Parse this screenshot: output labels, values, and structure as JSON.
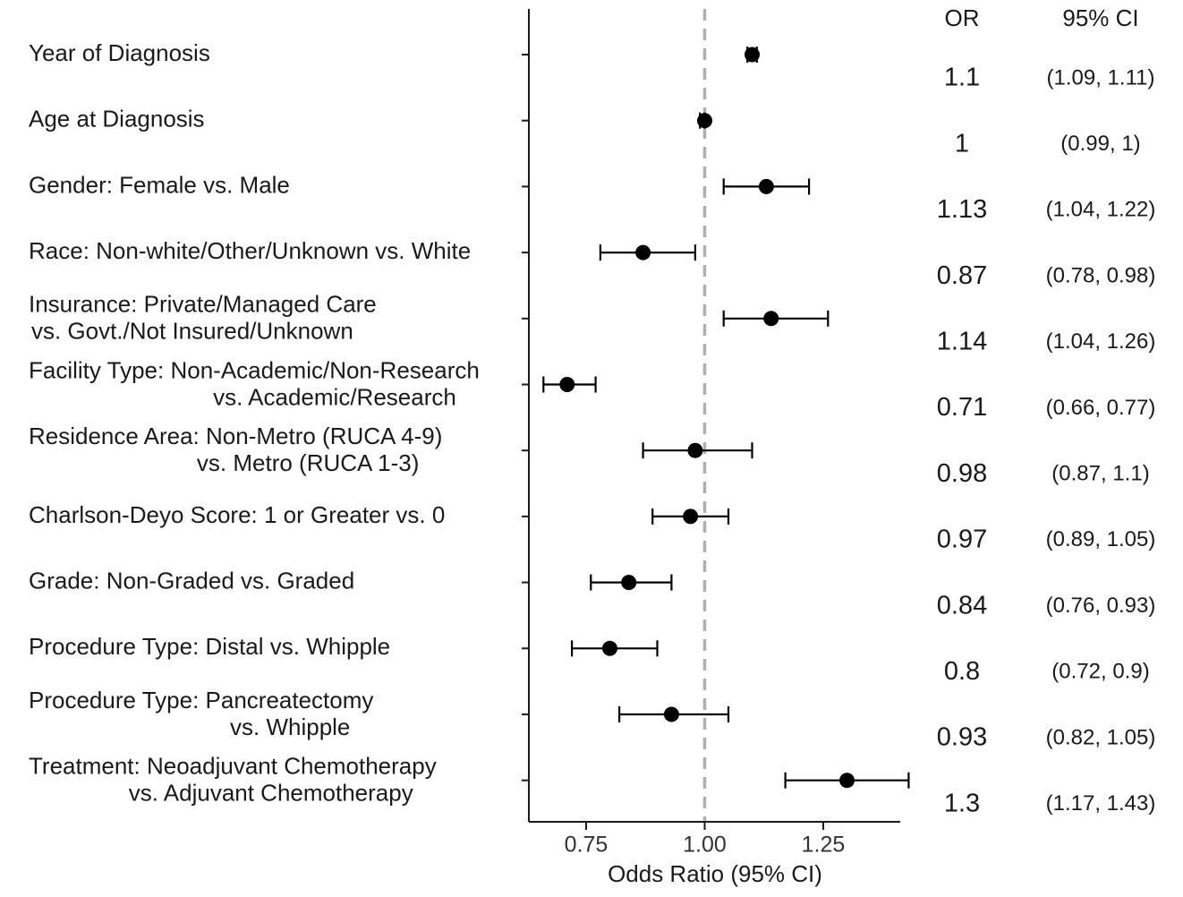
{
  "chart_data": {
    "type": "forest",
    "xlabel": "Odds Ratio (95% CI)",
    "xlim": [
      0.64,
      1.45
    ],
    "xticks": [
      0.75,
      1.0,
      1.25
    ],
    "xtick_labels": [
      "0.75",
      "1.00",
      "1.25"
    ],
    "reference_line": 1.0,
    "headers": {
      "or": "OR",
      "ci": "95% CI"
    },
    "rows": [
      {
        "label": [
          "Year of Diagnosis"
        ],
        "or": 1.1,
        "lo": 1.09,
        "hi": 1.11,
        "or_text": "1.1",
        "ci_text": "(1.09, 1.11)"
      },
      {
        "label": [
          "Age at Diagnosis"
        ],
        "or": 1.0,
        "lo": 0.99,
        "hi": 1.0,
        "or_text": "1",
        "ci_text": "(0.99, 1)"
      },
      {
        "label": [
          "Gender: Female vs. Male"
        ],
        "or": 1.13,
        "lo": 1.04,
        "hi": 1.22,
        "or_text": "1.13",
        "ci_text": "(1.04, 1.22)"
      },
      {
        "label": [
          "Race: Non-white/Other/Unknown vs. White"
        ],
        "or": 0.87,
        "lo": 0.78,
        "hi": 0.98,
        "or_text": "0.87",
        "ci_text": "(0.78, 0.98)"
      },
      {
        "label": [
          "Insurance: Private/Managed Care",
          "vs. Govt./Not Insured/Unknown"
        ],
        "or": 1.14,
        "lo": 1.04,
        "hi": 1.26,
        "or_text": "1.14",
        "ci_text": "(1.04, 1.26)"
      },
      {
        "label": [
          "Facility Type: Non-Academic/Non-Research",
          "vs. Academic/Research"
        ],
        "or": 0.71,
        "lo": 0.66,
        "hi": 0.77,
        "or_text": "0.71",
        "ci_text": "(0.66, 0.77)"
      },
      {
        "label": [
          "Residence Area: Non-Metro (RUCA 4-9)",
          "vs. Metro (RUCA 1-3)"
        ],
        "or": 0.98,
        "lo": 0.87,
        "hi": 1.1,
        "or_text": "0.98",
        "ci_text": "(0.87, 1.1)"
      },
      {
        "label": [
          "Charlson-Deyo Score: 1 or Greater vs. 0"
        ],
        "or": 0.97,
        "lo": 0.89,
        "hi": 1.05,
        "or_text": "0.97",
        "ci_text": "(0.89, 1.05)"
      },
      {
        "label": [
          "Grade: Non-Graded vs. Graded"
        ],
        "or": 0.84,
        "lo": 0.76,
        "hi": 0.93,
        "or_text": "0.84",
        "ci_text": "(0.76, 0.93)"
      },
      {
        "label": [
          "Procedure Type: Distal vs. Whipple"
        ],
        "or": 0.8,
        "lo": 0.72,
        "hi": 0.9,
        "or_text": "0.8",
        "ci_text": "(0.72, 0.9)"
      },
      {
        "label": [
          "Procedure Type: Pancreatectomy",
          "vs. Whipple"
        ],
        "or": 0.93,
        "lo": 0.82,
        "hi": 1.05,
        "or_text": "0.93",
        "ci_text": "(0.82, 1.05)"
      },
      {
        "label": [
          "Treatment: Neoadjuvant Chemotherapy",
          "vs. Adjuvant Chemotherapy"
        ],
        "or": 1.3,
        "lo": 1.17,
        "hi": 1.43,
        "or_text": "1.3",
        "ci_text": "(1.17, 1.43)"
      }
    ]
  }
}
